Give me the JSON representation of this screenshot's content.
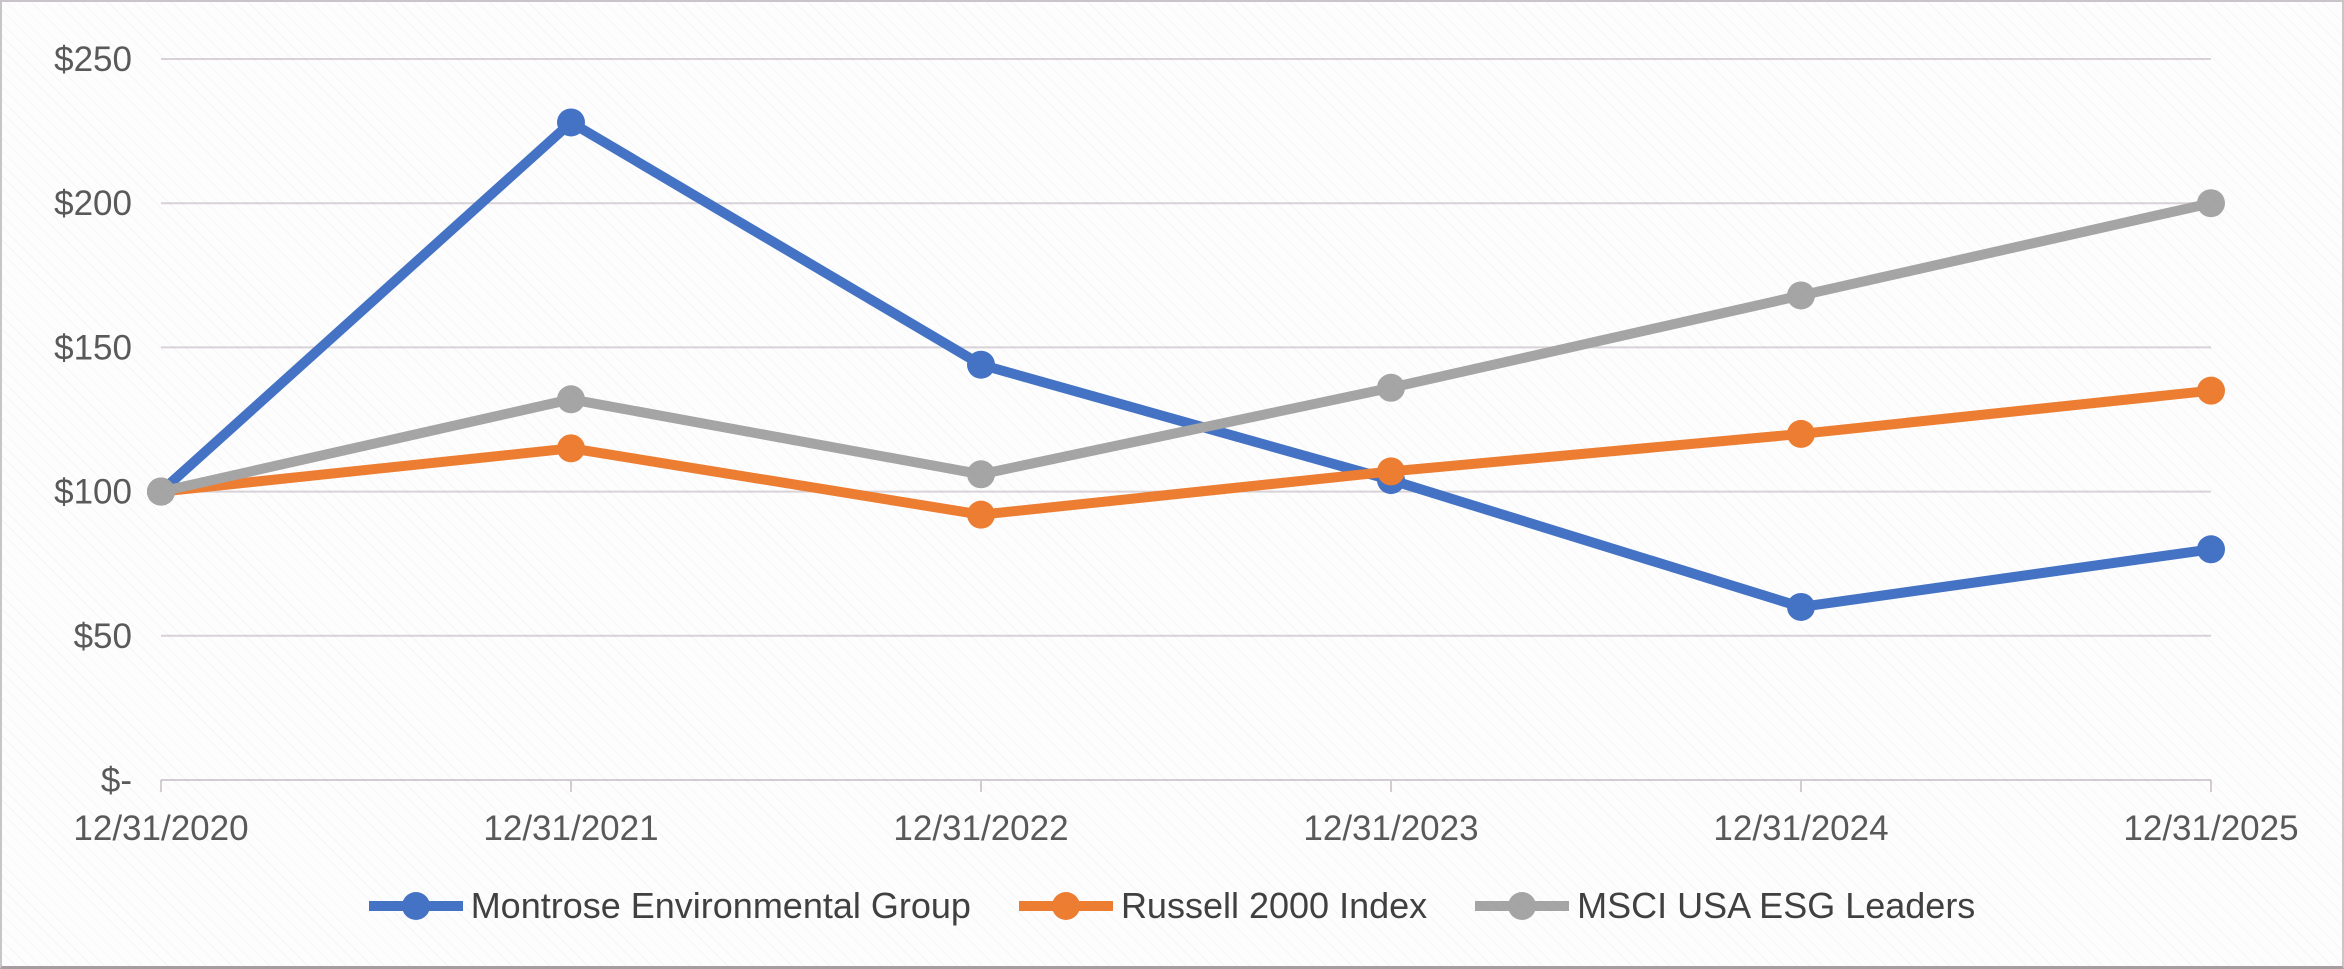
{
  "chart_data": {
    "type": "line",
    "title": "",
    "xlabel": "",
    "ylabel": "",
    "x_labels": [
      "12/31/2020",
      "12/31/2021",
      "12/31/2022",
      "12/31/2023",
      "12/31/2024",
      "12/31/2025"
    ],
    "y_ticks": [
      {
        "label": "$-",
        "value": 0
      },
      {
        "label": "$50",
        "value": 50
      },
      {
        "label": "$100",
        "value": 100
      },
      {
        "label": "$150",
        "value": 150
      },
      {
        "label": "$200",
        "value": 200
      },
      {
        "label": "$250",
        "value": 250
      }
    ],
    "ylim": [
      0,
      250
    ],
    "grid": "horizontal",
    "legend_position": "bottom",
    "marker": "circle",
    "series": [
      {
        "name": "Montrose Environmental Group",
        "color": "#4472C4",
        "values": [
          100,
          228,
          144,
          104,
          60,
          80
        ]
      },
      {
        "name": "Russell 2000 Index",
        "color": "#ED7D31",
        "values": [
          100,
          115,
          92,
          107,
          120,
          135
        ]
      },
      {
        "name": "MSCI USA ESG Leaders",
        "color": "#A5A5A5",
        "values": [
          100,
          132,
          106,
          136,
          168,
          200
        ]
      }
    ],
    "colors": {
      "gridline": "#d9d2d8",
      "axis_line": "#d3ccd2",
      "tick_label": "#595959",
      "legend_text": "#404040",
      "background": "#fdfdfd"
    }
  }
}
